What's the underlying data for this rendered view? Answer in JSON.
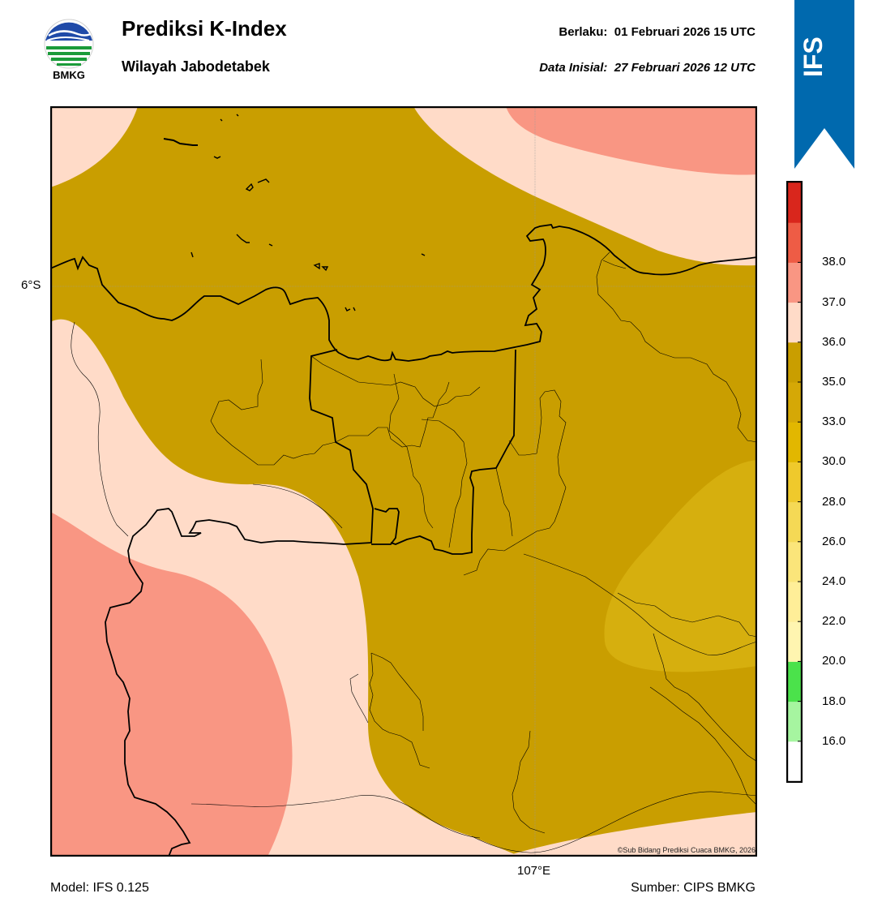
{
  "header": {
    "title": "Prediksi K-Index",
    "subtitle": "Wilayah Jabodetabek",
    "valid_label": "Berlaku:",
    "valid_time": "01 Februari 2026 15 UTC",
    "init_label": "Data Inisial:",
    "init_time": "27 Februari 2026 12 UTC"
  },
  "logo": {
    "name": "BMKG",
    "icon": "bmkg-logo"
  },
  "badge": {
    "text": "IFS",
    "color": "#0069AE"
  },
  "map": {
    "lat_label": "6°S",
    "lon_label": "107°E",
    "copyright": "©Sub Bidang Prediksi Cuaca BMKG, 2026",
    "colors": {
      "level_33_35": "#C99E00",
      "level_30_33": "#D6AF0E",
      "level_35_36": "#FFDBC8",
      "level_36_37": "#F99683",
      "border": "#000000"
    }
  },
  "colorbar": {
    "ticks": [
      "16.0",
      "18.0",
      "20.0",
      "22.0",
      "24.0",
      "26.0",
      "28.0",
      "30.0",
      "33.0",
      "35.0",
      "36.0",
      "37.0",
      "38.0"
    ],
    "bands": [
      {
        "color": "#FFFFFF"
      },
      {
        "color": "#A6F5A0"
      },
      {
        "color": "#4BE24B"
      },
      {
        "color": "#FFF5B0"
      },
      {
        "color": "#FFEE98"
      },
      {
        "color": "#FBE57A"
      },
      {
        "color": "#F5D955"
      },
      {
        "color": "#EFC92C"
      },
      {
        "color": "#E2B700"
      },
      {
        "color": "#D5A806"
      },
      {
        "color": "#C99E00"
      },
      {
        "color": "#FFDBC8"
      },
      {
        "color": "#F99683"
      },
      {
        "color": "#EE5C45"
      },
      {
        "color": "#D9261C"
      }
    ]
  },
  "footer": {
    "model": "Model: IFS 0.125",
    "source": "Sumber: CIPS BMKG"
  }
}
